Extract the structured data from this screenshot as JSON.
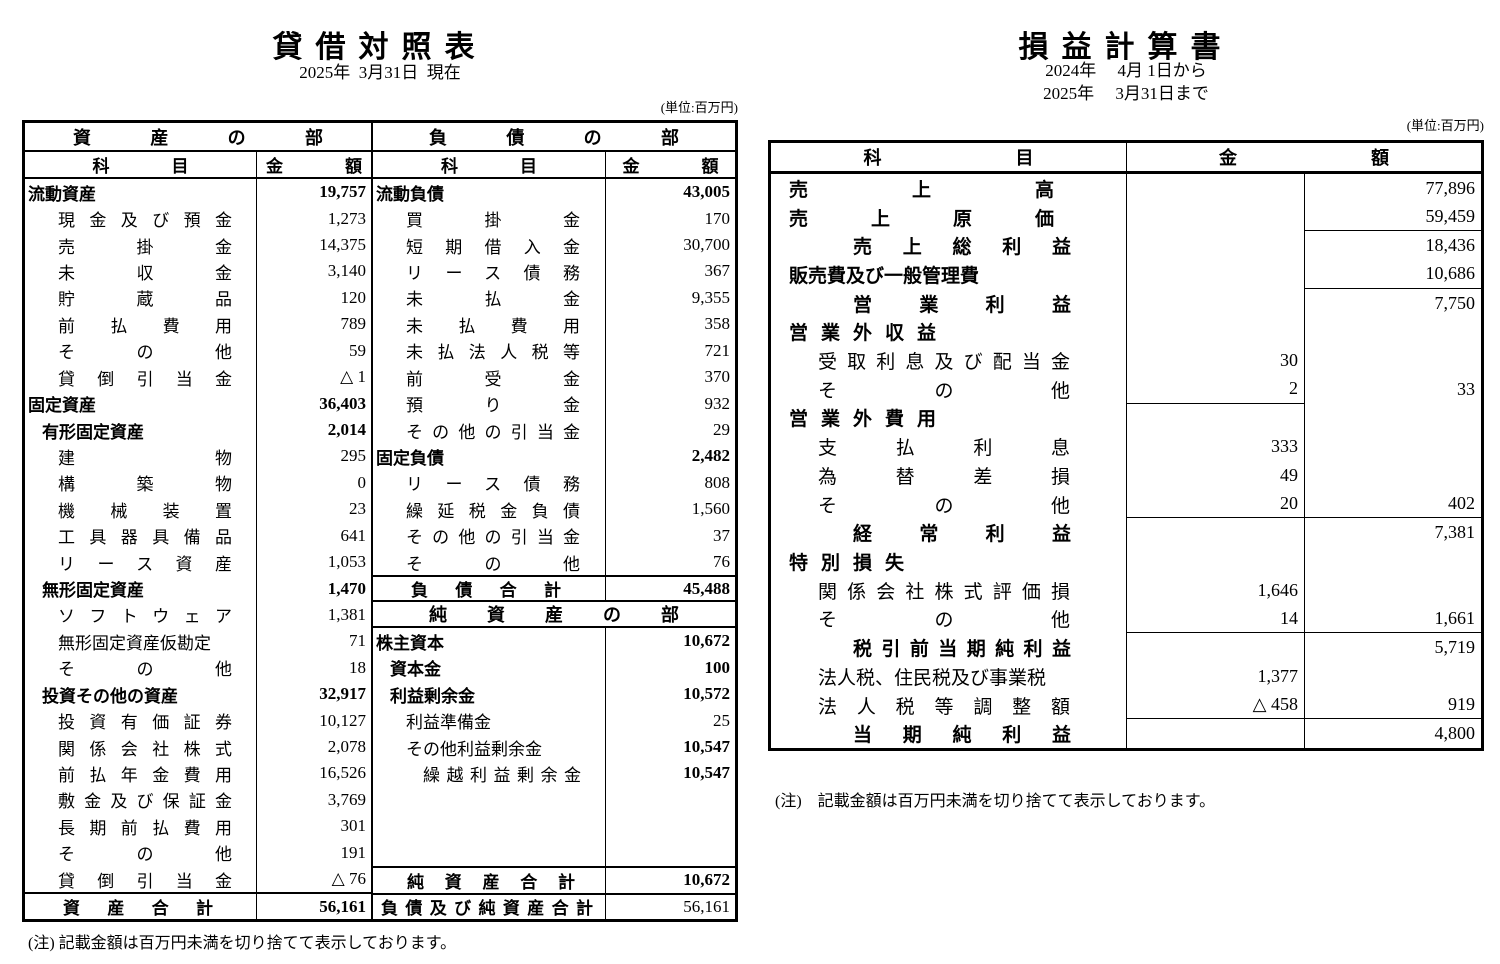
{
  "balance_sheet": {
    "title": "貸借対照表",
    "date": "2025年  3月31日  現在",
    "unit": "(単位:百万円)",
    "assets_part_header": "資産の部",
    "liabilities_part_header": "負債の部",
    "equity_part_header": "純資産の部",
    "col_subject": "科目",
    "col_amount": "金額",
    "assets_rows": [
      {
        "label": "流動資産",
        "s": "sec",
        "value": "19,757",
        "vb": true
      },
      {
        "label": "現金及び預金",
        "s": "item",
        "value": "1,273"
      },
      {
        "label": "売掛金",
        "s": "item",
        "value": "14,375"
      },
      {
        "label": "未収金",
        "s": "item",
        "value": "3,140"
      },
      {
        "label": "貯蔵品",
        "s": "item",
        "value": "120"
      },
      {
        "label": "前払費用",
        "s": "item",
        "value": "789"
      },
      {
        "label": "その他",
        "s": "item",
        "value": "59"
      },
      {
        "label": "貸倒引当金",
        "s": "item",
        "value": "△ 1"
      },
      {
        "label": "固定資産",
        "s": "sec",
        "value": "36,403",
        "vb": true
      },
      {
        "label": "有形固定資産",
        "s": "sec1",
        "value": "2,014",
        "vb": true
      },
      {
        "label": "建物",
        "s": "item",
        "value": "295"
      },
      {
        "label": "構築物",
        "s": "item",
        "value": "0"
      },
      {
        "label": "機械装置",
        "s": "item",
        "value": "23"
      },
      {
        "label": "工具器具備品",
        "s": "item",
        "value": "641"
      },
      {
        "label": "リース資産",
        "s": "item",
        "value": "1,053"
      },
      {
        "label": "無形固定資産",
        "s": "sec1",
        "value": "1,470",
        "vb": true
      },
      {
        "label": "ソフトウェア",
        "s": "item",
        "value": "1,381"
      },
      {
        "label": "無形固定資産仮勘定",
        "s": "itemn",
        "value": "71"
      },
      {
        "label": "その他",
        "s": "item",
        "value": "18"
      },
      {
        "label": "投資その他の資産",
        "s": "sec1",
        "value": "32,917",
        "vb": true
      },
      {
        "label": "投資有価証券",
        "s": "item",
        "value": "10,127"
      },
      {
        "label": "関係会社株式",
        "s": "item",
        "value": "2,078"
      },
      {
        "label": "前払年金費用",
        "s": "item",
        "value": "16,526"
      },
      {
        "label": "敷金及び保証金",
        "s": "item",
        "value": "3,769"
      },
      {
        "label": "長期前払費用",
        "s": "item",
        "value": "301"
      },
      {
        "label": "その他",
        "s": "item",
        "value": "191"
      },
      {
        "label": "貸倒引当金",
        "s": "item",
        "value": "△ 76"
      }
    ],
    "assets_total": {
      "label": "資産合計",
      "value": "56,161"
    },
    "liabilities_rows": [
      {
        "label": "流動負債",
        "s": "sec",
        "value": "43,005",
        "vb": true
      },
      {
        "label": "買掛金",
        "s": "item",
        "value": "170"
      },
      {
        "label": "短期借入金",
        "s": "item",
        "value": "30,700"
      },
      {
        "label": "リース債務",
        "s": "item",
        "value": "367"
      },
      {
        "label": "未払金",
        "s": "item",
        "value": "9,355"
      },
      {
        "label": "未払費用",
        "s": "item",
        "value": "358"
      },
      {
        "label": "未払法人税等",
        "s": "item",
        "value": "721"
      },
      {
        "label": "前受金",
        "s": "item",
        "value": "370"
      },
      {
        "label": "預り金",
        "s": "item",
        "value": "932"
      },
      {
        "label": "その他の引当金",
        "s": "item",
        "value": "29"
      },
      {
        "label": "固定負債",
        "s": "sec",
        "value": "2,482",
        "vb": true
      },
      {
        "label": "リース債務",
        "s": "item",
        "value": "808"
      },
      {
        "label": "繰延税金負債",
        "s": "item",
        "value": "1,560"
      },
      {
        "label": "その他の引当金",
        "s": "item",
        "value": "37"
      },
      {
        "label": "その他",
        "s": "item",
        "value": "76"
      }
    ],
    "liabilities_total": {
      "label": "負債合計",
      "value": "45,488"
    },
    "equity_rows": [
      {
        "label": "株主資本",
        "s": "sec",
        "value": "10,672",
        "vb": true
      },
      {
        "label": "資本金",
        "s": "sec1",
        "value": "100",
        "vb": true
      },
      {
        "label": "利益剰余金",
        "s": "sec1",
        "value": "10,572",
        "vb": true
      },
      {
        "label": "利益準備金",
        "s": "itemn",
        "value": "25"
      },
      {
        "label": "その他利益剰余金",
        "s": "itemn",
        "value": "10,547",
        "vb": true
      },
      {
        "label": "繰越利益剰余金",
        "s": "item2j",
        "value": "10,547",
        "vb": true
      }
    ],
    "equity_total": {
      "label": "純資産合計",
      "value": "10,672"
    },
    "grand_total": {
      "label": "負債及び純資産合計",
      "value": "56,161"
    },
    "note": "(注) 記載金額は百万円未満を切り捨てて表示しております。"
  },
  "income_statement": {
    "title": "損益計算書",
    "period_from": "2024年　 4月 1日から",
    "period_to": "2025年　 3月31日まで",
    "unit": "(単位:百万円)",
    "col_subject": "科目",
    "col_amount": "金額",
    "rows": [
      {
        "label": "売上高",
        "s": "h0w",
        "a1": "",
        "a2": "77,896"
      },
      {
        "label": "売上原価",
        "s": "h0w",
        "a1": "",
        "a2": "59,459",
        "b2": true
      },
      {
        "label": "売上総利益",
        "s": "tot",
        "a1": "",
        "a2": "18,436"
      },
      {
        "label": "販売費及び一般管理費",
        "s": "h0n",
        "a1": "",
        "a2": "10,686",
        "b2": true
      },
      {
        "label": "営業利益",
        "s": "tot",
        "a1": "",
        "a2": "7,750"
      },
      {
        "label": "営業外収益",
        "s": "h0s",
        "a1": "",
        "a2": ""
      },
      {
        "label": "受取利息及び配当金",
        "s": "sub",
        "a1": "30",
        "a2": ""
      },
      {
        "label": "その他",
        "s": "sub",
        "a1": "2",
        "a2": "33",
        "b1": true
      },
      {
        "label": "営業外費用",
        "s": "h0s",
        "a1": "",
        "a2": ""
      },
      {
        "label": "支払利息",
        "s": "sub",
        "a1": "333",
        "a2": ""
      },
      {
        "label": "為替差損",
        "s": "sub",
        "a1": "49",
        "a2": ""
      },
      {
        "label": "その他",
        "s": "sub",
        "a1": "20",
        "a2": "402",
        "b1": true,
        "b2": true
      },
      {
        "label": "経常利益",
        "s": "tot",
        "a1": "",
        "a2": "7,381"
      },
      {
        "label": "特別損失",
        "s": "h0s",
        "a1": "",
        "a2": ""
      },
      {
        "label": "関係会社株式評価損",
        "s": "sub",
        "a1": "1,646",
        "a2": ""
      },
      {
        "label": "その他",
        "s": "sub",
        "a1": "14",
        "a2": "1,661",
        "b1": true,
        "b2": true
      },
      {
        "label": "税引前当期純利益",
        "s": "tot",
        "a1": "",
        "a2": "5,719"
      },
      {
        "label": "法人税、住民税及び事業税",
        "s": "subn",
        "a1": "1,377",
        "a2": ""
      },
      {
        "label": "法人税等調整額",
        "s": "sub",
        "a1": "△ 458",
        "a2": "919",
        "b1": true,
        "b2": true
      },
      {
        "label": "当期純利益",
        "s": "tot",
        "a1": "",
        "a2": "4,800"
      }
    ],
    "note": "(注)　記載金額は百万円未満を切り捨てて表示しております。"
  }
}
